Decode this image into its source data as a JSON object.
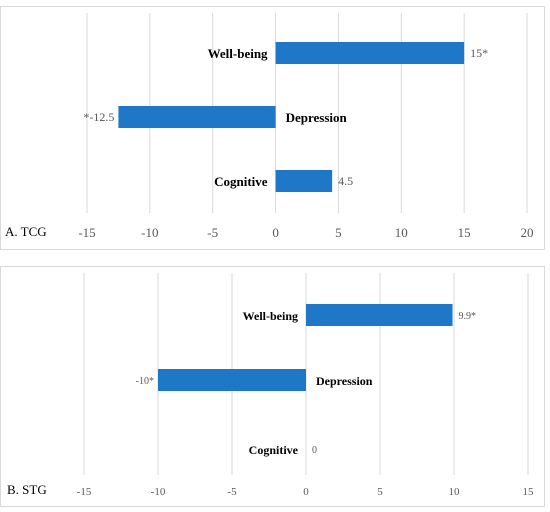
{
  "chart_data": [
    {
      "type": "bar",
      "orientation": "horizontal",
      "title": "A. TCG",
      "categories": [
        "Well-being",
        "Depression",
        "Cognitive"
      ],
      "values": [
        15,
        -12.5,
        4.5
      ],
      "data_labels": [
        "15*",
        "*-12.5",
        "4.5"
      ],
      "xlim": [
        -15,
        20
      ],
      "ticks": [
        -15,
        -10,
        -5,
        0,
        5,
        10,
        15,
        20
      ],
      "grid": true,
      "bar_color": "#1f77c8"
    },
    {
      "type": "bar",
      "orientation": "horizontal",
      "title": "B. STG",
      "categories": [
        "Well-being",
        "Depression",
        "Cognitive"
      ],
      "values": [
        9.9,
        -10,
        0
      ],
      "data_labels": [
        "9.9*",
        "-10*",
        "0"
      ],
      "xlim": [
        -15,
        15
      ],
      "ticks": [
        -15,
        -10,
        -5,
        0,
        5,
        10,
        15
      ],
      "grid": true,
      "bar_color": "#1f77c8"
    }
  ]
}
